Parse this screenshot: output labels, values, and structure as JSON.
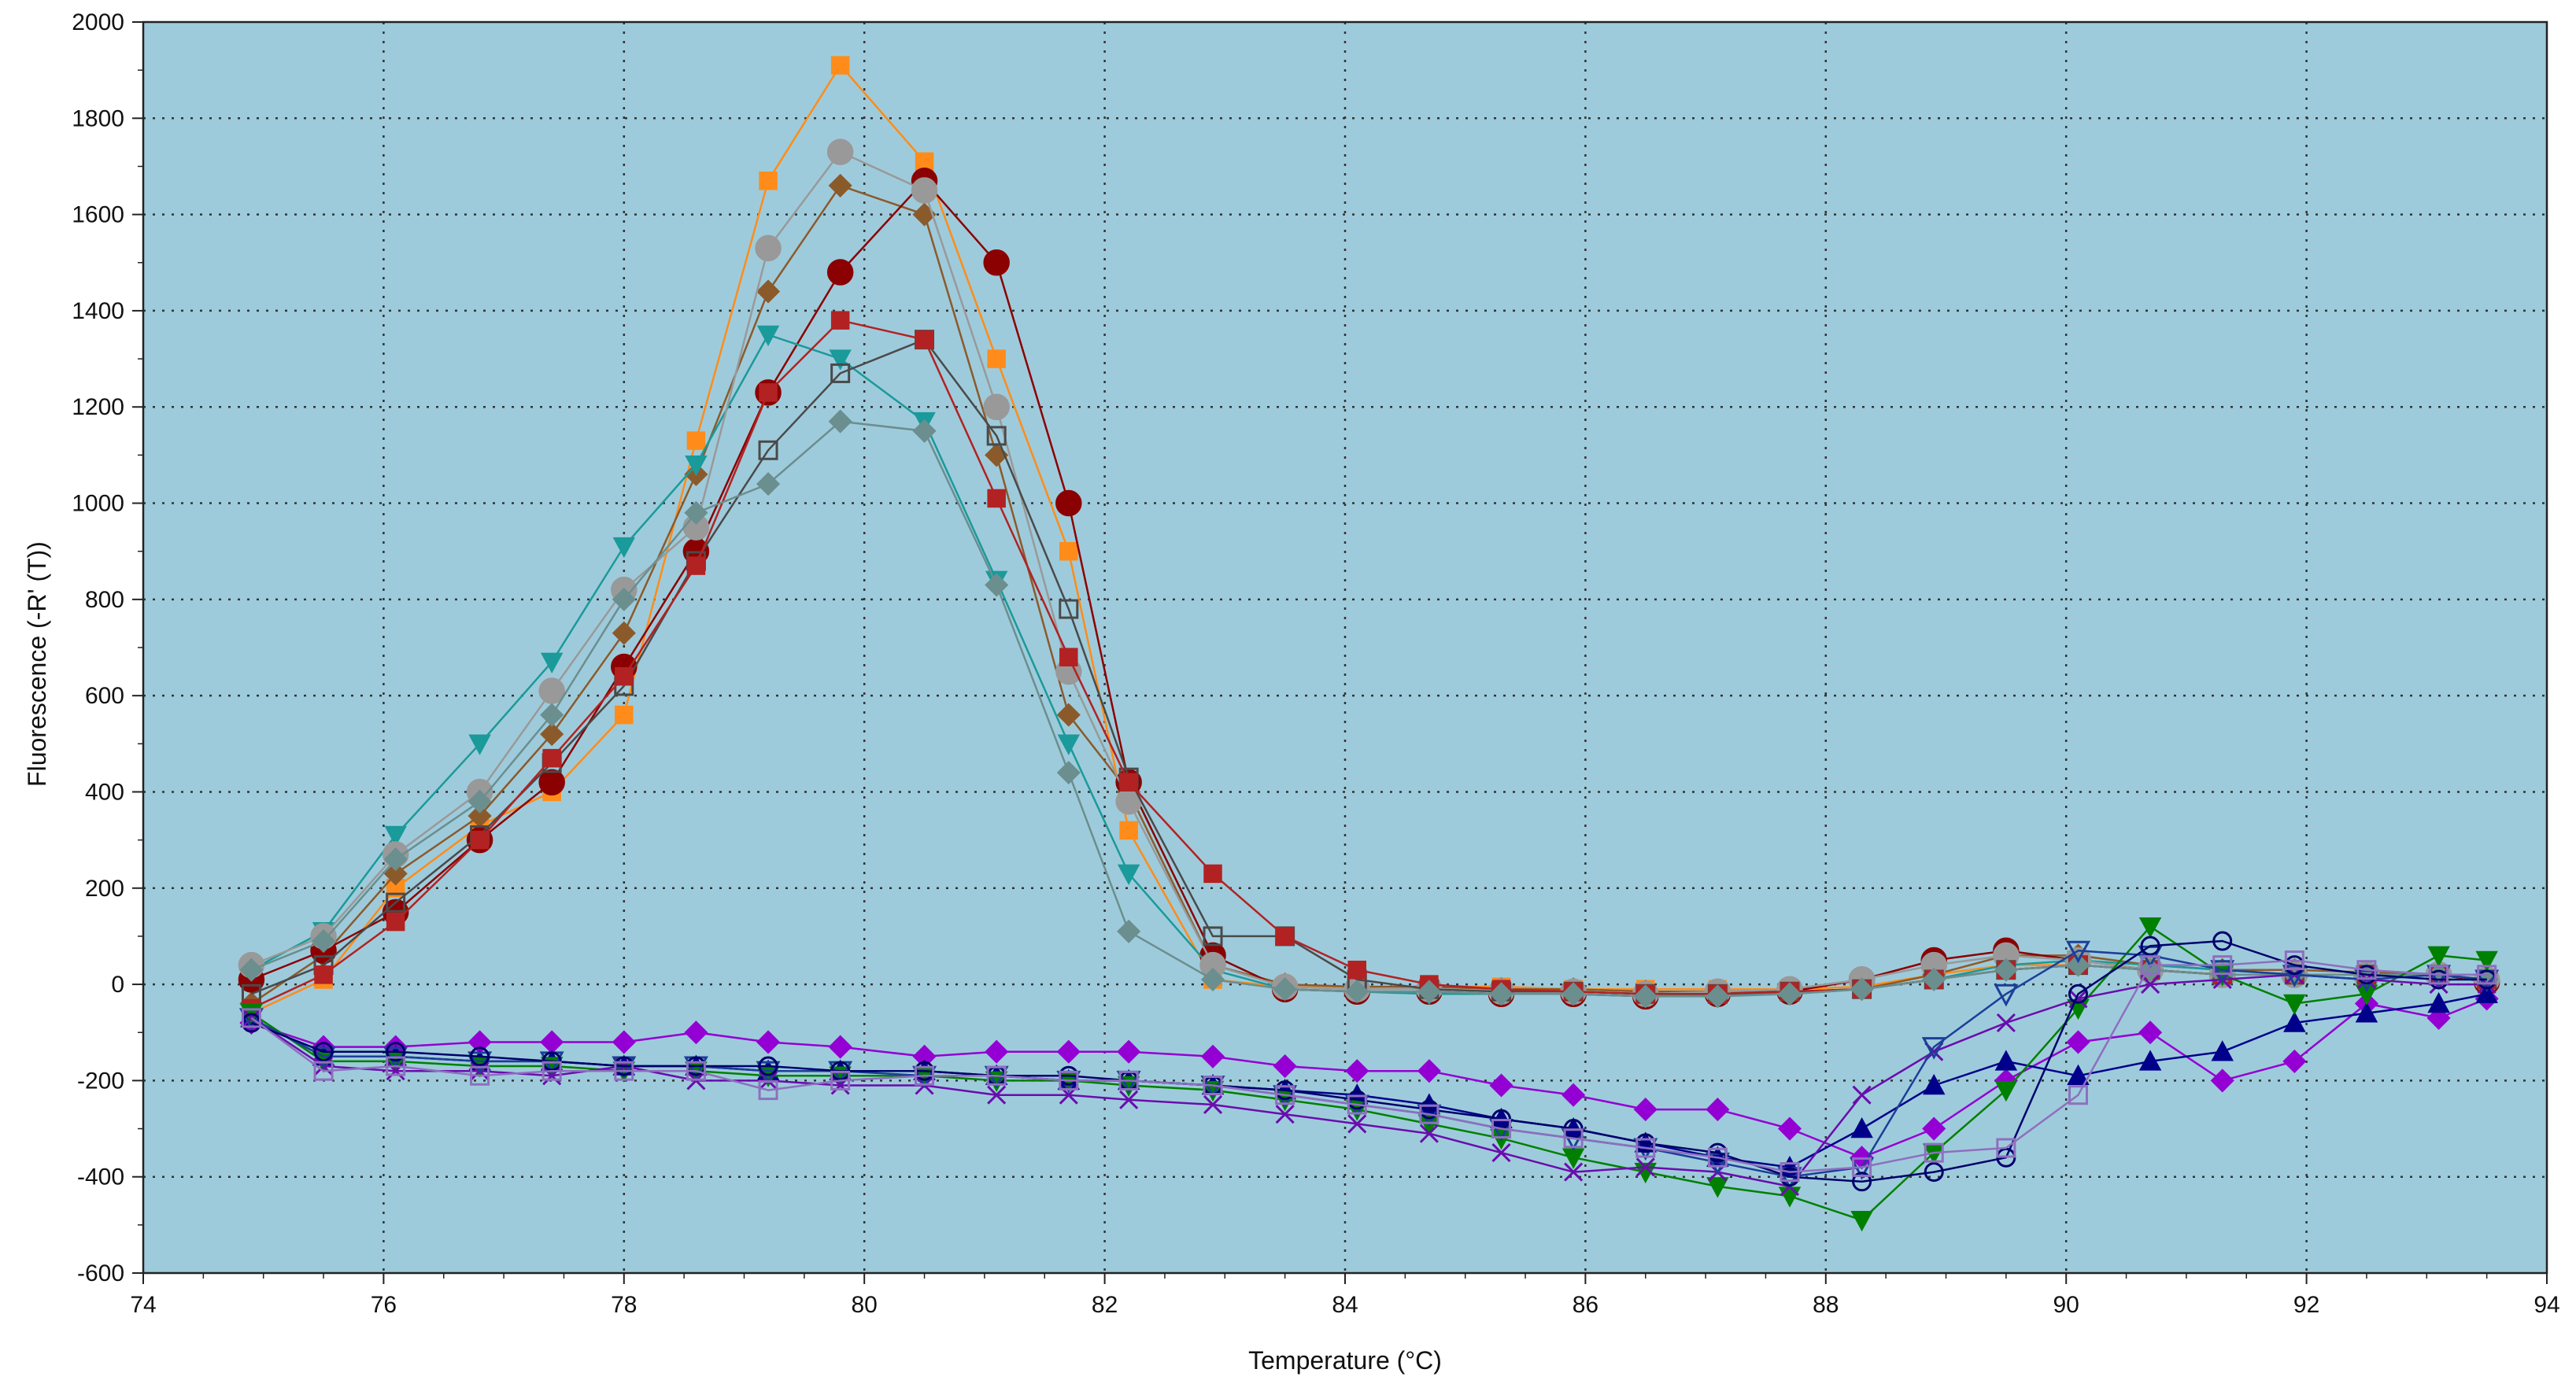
{
  "chart_data": {
    "type": "line",
    "title": "",
    "xlabel": "Temperature (°C)",
    "ylabel": "Fluorescence (-R' (T))",
    "xlim": [
      74,
      94
    ],
    "ylim": [
      -600,
      2000
    ],
    "x_ticks": [
      74,
      76,
      78,
      80,
      82,
      84,
      86,
      88,
      90,
      92,
      94
    ],
    "y_ticks": [
      -600,
      -400,
      -200,
      0,
      200,
      400,
      600,
      800,
      1000,
      1200,
      1400,
      1600,
      1800,
      2000
    ],
    "grid": true,
    "legend": "none",
    "plot_background": "#9ecbdb",
    "series": [
      {
        "color": "#ff8c1a",
        "marker": "square",
        "x": [
          74.9,
          75.5,
          76.1,
          76.8,
          77.4,
          78.0,
          78.6,
          79.2,
          79.8,
          80.5,
          81.1,
          81.7,
          82.2,
          82.9,
          83.5,
          84.1,
          84.7,
          85.3,
          85.9,
          86.5,
          87.1,
          87.7,
          88.3,
          88.9,
          89.5,
          90.1,
          90.7,
          91.3,
          91.9,
          92.5,
          93.1,
          93.5
        ],
        "values": [
          -60,
          10,
          200,
          330,
          400,
          560,
          1130,
          1670,
          1910,
          1710,
          1300,
          900,
          320,
          10,
          -5,
          -5,
          -5,
          -5,
          -10,
          -10,
          -10,
          -10,
          -5,
          20,
          40,
          40,
          30,
          20,
          20,
          20,
          20,
          10
        ]
      },
      {
        "color": "#8b5a2b",
        "marker": "diamond",
        "x": [
          74.9,
          75.5,
          76.1,
          76.8,
          77.4,
          78.0,
          78.6,
          79.2,
          79.8,
          80.5,
          81.1,
          81.7,
          82.2,
          82.9,
          83.5,
          84.1,
          84.7,
          85.3,
          85.9,
          86.5,
          87.1,
          87.7,
          88.3,
          88.9,
          89.5,
          90.1,
          90.7,
          91.3,
          91.9,
          92.5,
          93.1,
          93.5
        ],
        "values": [
          -40,
          60,
          230,
          350,
          520,
          730,
          1060,
          1440,
          1660,
          1600,
          1100,
          560,
          400,
          40,
          0,
          -5,
          -5,
          -10,
          -10,
          -15,
          -15,
          -15,
          -10,
          20,
          60,
          60,
          40,
          30,
          30,
          25,
          20,
          10
        ]
      },
      {
        "color": "#8b0000",
        "marker": "circle-lg",
        "x": [
          74.9,
          75.5,
          76.1,
          76.8,
          77.4,
          78.0,
          78.6,
          79.2,
          79.8,
          80.5,
          81.1,
          81.7,
          82.2,
          82.9,
          83.5,
          84.1,
          84.7,
          85.3,
          85.9,
          86.5,
          87.1,
          87.7,
          88.3,
          88.9,
          89.5,
          90.1,
          90.7,
          91.3,
          91.9,
          92.5,
          93.1,
          93.5
        ],
        "values": [
          10,
          70,
          150,
          300,
          420,
          660,
          900,
          1230,
          1480,
          1670,
          1500,
          1000,
          420,
          60,
          -10,
          -15,
          -15,
          -20,
          -20,
          -25,
          -20,
          -15,
          10,
          50,
          70,
          50,
          30,
          20,
          20,
          20,
          20,
          5
        ]
      },
      {
        "color": "#1a9a9a",
        "marker": "triangle-down",
        "x": [
          74.9,
          75.5,
          76.1,
          76.8,
          77.4,
          78.0,
          78.6,
          79.2,
          79.8,
          80.5,
          81.1,
          81.7,
          82.2,
          82.9,
          83.5,
          84.1,
          84.7,
          85.3,
          85.9,
          86.5,
          87.1,
          87.7,
          88.3,
          88.9,
          89.5,
          90.1,
          90.7,
          91.3,
          91.9,
          92.5,
          93.1,
          93.5
        ],
        "values": [
          30,
          110,
          310,
          500,
          670,
          910,
          1080,
          1350,
          1300,
          1170,
          840,
          500,
          230,
          30,
          -10,
          -15,
          -20,
          -20,
          -20,
          -25,
          -20,
          -20,
          -10,
          10,
          40,
          50,
          40,
          30,
          20,
          20,
          20,
          10
        ]
      },
      {
        "color": "#999999",
        "marker": "circle-lg",
        "x": [
          74.9,
          75.5,
          76.1,
          76.8,
          77.4,
          78.0,
          78.6,
          79.2,
          79.8,
          80.5,
          81.1,
          81.7,
          82.2,
          82.9,
          83.5,
          84.1,
          84.7,
          85.3,
          85.9,
          86.5,
          87.1,
          87.7,
          88.3,
          88.9,
          89.5,
          90.1,
          90.7,
          91.3,
          91.9,
          92.5,
          93.1,
          93.5
        ],
        "values": [
          40,
          100,
          270,
          400,
          610,
          820,
          950,
          1530,
          1730,
          1650,
          1200,
          650,
          380,
          40,
          -5,
          -10,
          -10,
          -15,
          -15,
          -20,
          -15,
          -10,
          10,
          40,
          60,
          50,
          30,
          20,
          20,
          20,
          20,
          10
        ]
      },
      {
        "color": "#4a4a4a",
        "marker": "square-open",
        "x": [
          74.9,
          75.5,
          76.1,
          76.8,
          77.4,
          78.0,
          78.6,
          79.2,
          79.8,
          80.5,
          81.1,
          81.7,
          82.2,
          82.9,
          83.5,
          84.1,
          84.7,
          85.3,
          85.9,
          86.5,
          87.1,
          87.7,
          88.3,
          88.9,
          89.5,
          90.1,
          90.7,
          91.3,
          91.9,
          92.5,
          93.1,
          93.5
        ],
        "values": [
          -20,
          40,
          170,
          310,
          460,
          620,
          880,
          1110,
          1270,
          1340,
          1140,
          780,
          430,
          100,
          100,
          10,
          -10,
          -15,
          -15,
          -20,
          -20,
          -15,
          -10,
          10,
          30,
          40,
          30,
          20,
          20,
          20,
          20,
          10
        ]
      },
      {
        "color": "#b22222",
        "marker": "square",
        "x": [
          74.9,
          75.5,
          76.1,
          76.8,
          77.4,
          78.0,
          78.6,
          79.2,
          79.8,
          80.5,
          81.1,
          81.7,
          82.2,
          82.9,
          83.5,
          84.1,
          84.7,
          85.3,
          85.9,
          86.5,
          87.1,
          87.7,
          88.3,
          88.9,
          89.5,
          90.1,
          90.7,
          91.3,
          91.9,
          92.5,
          93.1,
          93.5
        ],
        "values": [
          -50,
          20,
          130,
          300,
          470,
          640,
          870,
          1230,
          1380,
          1340,
          1010,
          680,
          420,
          230,
          100,
          30,
          0,
          -10,
          -15,
          -20,
          -20,
          -15,
          -10,
          10,
          30,
          40,
          30,
          20,
          20,
          20,
          20,
          10
        ]
      },
      {
        "color": "#6b8e8e",
        "marker": "diamond",
        "x": [
          74.9,
          75.5,
          76.1,
          76.8,
          77.4,
          78.0,
          78.6,
          79.2,
          79.8,
          80.5,
          81.1,
          81.7,
          82.2,
          82.9,
          83.5,
          84.1,
          84.7,
          85.3,
          85.9,
          86.5,
          87.1,
          87.7,
          88.3,
          88.9,
          89.5,
          90.1,
          90.7,
          91.3,
          91.9,
          92.5,
          93.1,
          93.5
        ],
        "values": [
          30,
          90,
          260,
          380,
          560,
          800,
          980,
          1040,
          1170,
          1150,
          830,
          440,
          110,
          10,
          -10,
          -15,
          -15,
          -20,
          -20,
          -25,
          -25,
          -20,
          -10,
          10,
          30,
          40,
          30,
          20,
          20,
          20,
          20,
          10
        ]
      },
      {
        "color": "#9400d3",
        "marker": "diamond",
        "x": [
          74.9,
          75.5,
          76.1,
          76.8,
          77.4,
          78.0,
          78.6,
          79.2,
          79.8,
          80.5,
          81.1,
          81.7,
          82.2,
          82.9,
          83.5,
          84.1,
          84.7,
          85.3,
          85.9,
          86.5,
          87.1,
          87.7,
          88.3,
          88.9,
          89.5,
          90.1,
          90.7,
          91.3,
          91.9,
          92.5,
          93.1,
          93.5
        ],
        "values": [
          -80,
          -130,
          -130,
          -120,
          -120,
          -120,
          -100,
          -120,
          -130,
          -150,
          -140,
          -140,
          -140,
          -150,
          -170,
          -180,
          -180,
          -210,
          -230,
          -260,
          -260,
          -300,
          -360,
          -300,
          -200,
          -120,
          -100,
          -200,
          -160,
          -40,
          -70,
          -30
        ]
      },
      {
        "color": "#00008b",
        "marker": "triangle",
        "x": [
          74.9,
          75.5,
          76.1,
          76.8,
          77.4,
          78.0,
          78.6,
          79.2,
          79.8,
          80.5,
          81.1,
          81.7,
          82.2,
          82.9,
          83.5,
          84.1,
          84.7,
          85.3,
          85.9,
          86.5,
          87.1,
          87.7,
          88.3,
          88.9,
          89.5,
          90.1,
          90.7,
          91.3,
          91.9,
          92.5,
          93.1,
          93.5
        ],
        "values": [
          -70,
          -150,
          -150,
          -160,
          -160,
          -170,
          -170,
          -180,
          -180,
          -180,
          -190,
          -200,
          -200,
          -210,
          -220,
          -230,
          -250,
          -280,
          -300,
          -330,
          -360,
          -380,
          -300,
          -210,
          -160,
          -190,
          -160,
          -140,
          -80,
          -60,
          -40,
          -20
        ]
      },
      {
        "color": "#008000",
        "marker": "triangle-down",
        "x": [
          74.9,
          75.5,
          76.1,
          76.8,
          77.4,
          78.0,
          78.6,
          79.2,
          79.8,
          80.5,
          81.1,
          81.7,
          82.2,
          82.9,
          83.5,
          84.1,
          84.7,
          85.3,
          85.9,
          86.5,
          87.1,
          87.7,
          88.3,
          88.9,
          89.5,
          90.1,
          90.7,
          91.3,
          91.9,
          92.5,
          93.1,
          93.5
        ],
        "values": [
          -60,
          -160,
          -160,
          -170,
          -170,
          -180,
          -180,
          -190,
          -190,
          -190,
          -200,
          -200,
          -210,
          -220,
          -240,
          -260,
          -290,
          -320,
          -360,
          -390,
          -420,
          -440,
          -490,
          -350,
          -220,
          -50,
          120,
          20,
          -40,
          -20,
          60,
          50
        ]
      },
      {
        "color": "#6a0dad",
        "marker": "cross",
        "x": [
          74.9,
          75.5,
          76.1,
          76.8,
          77.4,
          78.0,
          78.6,
          79.2,
          79.8,
          80.5,
          81.1,
          81.7,
          82.2,
          82.9,
          83.5,
          84.1,
          84.7,
          85.3,
          85.9,
          86.5,
          87.1,
          87.7,
          88.3,
          88.9,
          89.5,
          90.1,
          90.7,
          91.3,
          91.9,
          92.5,
          93.1,
          93.5
        ],
        "values": [
          -70,
          -170,
          -180,
          -180,
          -190,
          -170,
          -200,
          -200,
          -210,
          -210,
          -230,
          -230,
          -240,
          -250,
          -270,
          -290,
          -310,
          -350,
          -390,
          -380,
          -390,
          -420,
          -230,
          -140,
          -80,
          -30,
          0,
          10,
          20,
          10,
          0,
          0
        ]
      },
      {
        "color": "#1c3f99",
        "marker": "triangle-down-open",
        "x": [
          74.9,
          75.5,
          76.1,
          76.8,
          77.4,
          78.0,
          78.6,
          79.2,
          79.8,
          80.5,
          81.1,
          81.7,
          82.2,
          82.9,
          83.5,
          84.1,
          84.7,
          85.3,
          85.9,
          86.5,
          87.1,
          87.7,
          88.3,
          88.9,
          89.5,
          90.1,
          90.7,
          91.3,
          91.9,
          92.5,
          93.1,
          93.5
        ],
        "values": [
          -70,
          -150,
          -150,
          -160,
          -160,
          -170,
          -170,
          -180,
          -180,
          -190,
          -190,
          -200,
          -200,
          -210,
          -230,
          -250,
          -270,
          -300,
          -320,
          -340,
          -370,
          -400,
          -380,
          -130,
          -20,
          70,
          60,
          30,
          20,
          10,
          20,
          10
        ]
      },
      {
        "color": "#00006b",
        "marker": "circle",
        "x": [
          74.9,
          75.5,
          76.1,
          76.8,
          77.4,
          78.0,
          78.6,
          79.2,
          79.8,
          80.5,
          81.1,
          81.7,
          82.2,
          82.9,
          83.5,
          84.1,
          84.7,
          85.3,
          85.9,
          86.5,
          87.1,
          87.7,
          88.3,
          88.9,
          89.5,
          90.1,
          90.7,
          91.3,
          91.9,
          92.5,
          93.1,
          93.5
        ],
        "values": [
          -80,
          -140,
          -140,
          -150,
          -160,
          -170,
          -170,
          -170,
          -180,
          -180,
          -190,
          -190,
          -200,
          -210,
          -220,
          -240,
          -260,
          -280,
          -300,
          -330,
          -350,
          -400,
          -410,
          -390,
          -360,
          -20,
          80,
          90,
          40,
          20,
          10,
          10
        ]
      },
      {
        "color": "#8e6fbf",
        "marker": "square-open",
        "x": [
          74.9,
          75.5,
          76.1,
          76.8,
          77.4,
          78.0,
          78.6,
          79.2,
          79.8,
          80.5,
          81.1,
          81.7,
          82.2,
          82.9,
          83.5,
          84.1,
          84.7,
          85.3,
          85.9,
          86.5,
          87.1,
          87.7,
          88.3,
          88.9,
          89.5,
          90.1,
          90.7,
          91.3,
          91.9,
          92.5,
          93.1,
          93.5
        ],
        "values": [
          -70,
          -180,
          -170,
          -190,
          -180,
          -180,
          -180,
          -220,
          -200,
          -190,
          -190,
          -200,
          -200,
          -210,
          -230,
          -250,
          -270,
          -300,
          -320,
          -340,
          -360,
          -390,
          -380,
          -350,
          -340,
          -230,
          40,
          40,
          50,
          30,
          20,
          20
        ]
      }
    ]
  }
}
